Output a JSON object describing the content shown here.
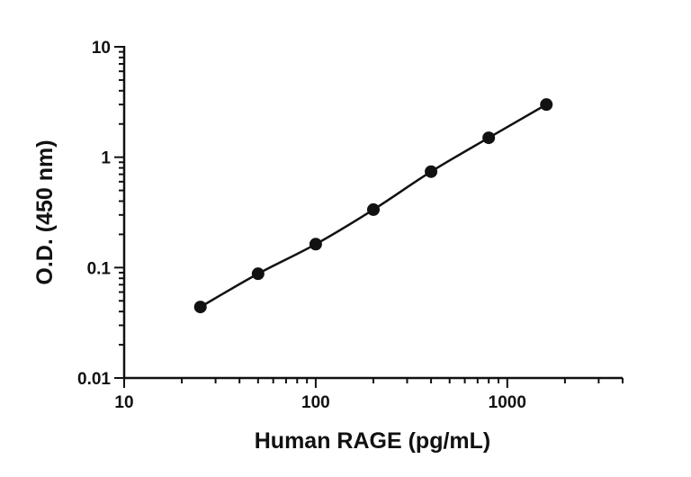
{
  "chart_data": {
    "type": "scatter",
    "title": "",
    "xlabel": "Human RAGE (pg/mL)",
    "ylabel": "O.D. (450 nm)",
    "x_scale": "log",
    "y_scale": "log",
    "xlim": [
      10,
      4000
    ],
    "ylim": [
      0.01,
      10
    ],
    "x_ticks": [
      {
        "value": 10,
        "label": "10"
      },
      {
        "value": 100,
        "label": "100"
      },
      {
        "value": 1000,
        "label": "1000"
      }
    ],
    "y_ticks": [
      {
        "value": 0.01,
        "label": "0.01"
      },
      {
        "value": 0.1,
        "label": "0.1"
      },
      {
        "value": 1,
        "label": "1"
      },
      {
        "value": 10,
        "label": "10"
      }
    ],
    "grid": false,
    "legend": "none",
    "series": [
      {
        "x": [
          25,
          50,
          100,
          200,
          400,
          800,
          1600
        ],
        "y": [
          0.044,
          0.088,
          0.163,
          0.335,
          0.74,
          1.5,
          3.0
        ],
        "marker_color": "#111111",
        "line_color": "#111111",
        "fit_line": true
      }
    ]
  }
}
